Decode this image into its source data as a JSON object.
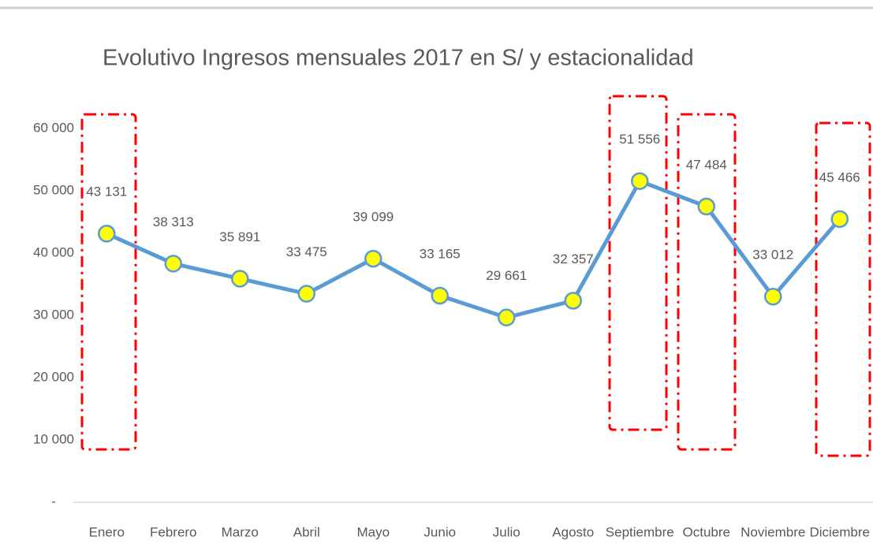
{
  "chart_data": {
    "type": "line",
    "title": "Evolutivo Ingresos mensuales 2017 en S/ y estacionalidad",
    "categories": [
      "Enero",
      "Febrero",
      "Marzo",
      "Abril",
      "Mayo",
      "Junio",
      "Julio",
      "Agosto",
      "Septiembre",
      "Octubre",
      "Noviembre",
      "Diciembre"
    ],
    "series": [
      {
        "name": "Ingresos",
        "color": "#5b9bd5",
        "values": [
          43131,
          38313,
          35891,
          33475,
          39099,
          33165,
          29661,
          32357,
          51556,
          47484,
          33012,
          45466
        ],
        "value_labels": [
          "43 131",
          "38 313",
          "35 891",
          "33 475",
          "39 099",
          "33 165",
          "29 661",
          "32 357",
          "51 556",
          "47 484",
          "33 012",
          "45 466"
        ]
      }
    ],
    "marker_color": "#ffff00",
    "ylim": [
      0,
      60000
    ],
    "yticks": [
      {
        "value": 0,
        "label": "-"
      },
      {
        "value": 10000,
        "label": "10 000"
      },
      {
        "value": 20000,
        "label": "20 000"
      },
      {
        "value": 30000,
        "label": "30 000"
      },
      {
        "value": 40000,
        "label": "40 000"
      },
      {
        "value": 50000,
        "label": "50 000"
      },
      {
        "value": 60000,
        "label": "60 000"
      }
    ],
    "grid": false
  }
}
